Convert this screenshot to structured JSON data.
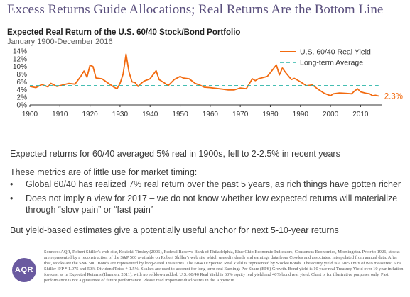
{
  "slide": {
    "title": "Excess Returns Guide Allocations; Real Returns Are the Bottom Line"
  },
  "chart": {
    "title": "Expected Real Return of the U.S. 60/40 Stock/Bond Portfolio",
    "subtitle": "January 1900-December 2016",
    "end_label": "2.3%",
    "colors": {
      "series": "#f26a0f",
      "average": "#2bb5a8",
      "axis": "#333333"
    }
  },
  "chart_data": {
    "type": "line",
    "title": "Expected Real Return of the U.S. 60/40 Stock/Bond Portfolio",
    "subtitle": "January 1900-December 2016",
    "xlabel": "",
    "ylabel": "",
    "xlim": [
      1900,
      2017
    ],
    "ylim": [
      0,
      14
    ],
    "x_ticks": [
      1900,
      1910,
      1920,
      1930,
      1940,
      1950,
      1960,
      1970,
      1980,
      1990,
      2000,
      2010
    ],
    "y_ticks": [
      "0%",
      "2%",
      "4%",
      "6%",
      "8%",
      "10%",
      "12%",
      "14%"
    ],
    "legend": {
      "position": "top-right"
    },
    "series": [
      {
        "name": "U.S. 60/40 Real Yield",
        "style": "solid",
        "points": [
          [
            1900,
            4.8
          ],
          [
            1902,
            4.5
          ],
          [
            1904,
            5.3
          ],
          [
            1906,
            4.7
          ],
          [
            1907,
            5.6
          ],
          [
            1909,
            4.8
          ],
          [
            1911,
            5.2
          ],
          [
            1913,
            5.6
          ],
          [
            1915,
            5.4
          ],
          [
            1917,
            7.5
          ],
          [
            1918,
            8.8
          ],
          [
            1919,
            7.2
          ],
          [
            1920,
            10.3
          ],
          [
            1921,
            10.0
          ],
          [
            1922,
            7.0
          ],
          [
            1924,
            6.8
          ],
          [
            1926,
            5.7
          ],
          [
            1928,
            4.6
          ],
          [
            1929,
            4.2
          ],
          [
            1930,
            5.6
          ],
          [
            1931,
            8.0
          ],
          [
            1932,
            13.2
          ],
          [
            1933,
            8.5
          ],
          [
            1934,
            6.0
          ],
          [
            1935,
            5.8
          ],
          [
            1936,
            4.8
          ],
          [
            1937,
            5.6
          ],
          [
            1938,
            6.2
          ],
          [
            1940,
            6.8
          ],
          [
            1942,
            8.9
          ],
          [
            1943,
            6.6
          ],
          [
            1945,
            5.6
          ],
          [
            1946,
            5.0
          ],
          [
            1948,
            6.6
          ],
          [
            1950,
            7.4
          ],
          [
            1951,
            7.0
          ],
          [
            1953,
            6.8
          ],
          [
            1955,
            5.6
          ],
          [
            1957,
            5.0
          ],
          [
            1958,
            4.6
          ],
          [
            1960,
            4.5
          ],
          [
            1962,
            4.3
          ],
          [
            1964,
            4.1
          ],
          [
            1966,
            3.9
          ],
          [
            1968,
            3.9
          ],
          [
            1970,
            4.4
          ],
          [
            1972,
            4.2
          ],
          [
            1974,
            6.8
          ],
          [
            1975,
            6.3
          ],
          [
            1976,
            6.8
          ],
          [
            1978,
            7.2
          ],
          [
            1979,
            7.4
          ],
          [
            1980,
            8.4
          ],
          [
            1981,
            9.4
          ],
          [
            1982,
            10.4
          ],
          [
            1983,
            7.8
          ],
          [
            1984,
            9.6
          ],
          [
            1985,
            8.5
          ],
          [
            1987,
            6.6
          ],
          [
            1988,
            6.9
          ],
          [
            1990,
            6.0
          ],
          [
            1992,
            5.0
          ],
          [
            1994,
            5.2
          ],
          [
            1996,
            4.0
          ],
          [
            1998,
            3.0
          ],
          [
            2000,
            2.4
          ],
          [
            2001,
            2.9
          ],
          [
            2003,
            3.1
          ],
          [
            2005,
            3.0
          ],
          [
            2007,
            2.9
          ],
          [
            2008,
            3.6
          ],
          [
            2009,
            4.2
          ],
          [
            2010,
            3.4
          ],
          [
            2012,
            3.0
          ],
          [
            2013,
            2.9
          ],
          [
            2014,
            2.4
          ],
          [
            2015,
            2.5
          ],
          [
            2016,
            2.3
          ]
        ]
      },
      {
        "name": "Long-term Average",
        "style": "dashed",
        "points": [
          [
            1900,
            5.0
          ],
          [
            2016,
            5.0
          ]
        ]
      }
    ],
    "annotations": [
      {
        "x": 2016,
        "y": 2.3,
        "text": "2.3%"
      }
    ]
  },
  "text": {
    "line1": "Expected returns for 60/40 averaged 5% real in 1900s, fell to 2-2.5% in recent years",
    "line2": "These metrics are of little use for market timing:",
    "bullets": [
      "Global 60/40 has realized 7% real return over the past 5 years, as rich things have gotten richer",
      "Does not imply a view for 2017 – we do not know whether low expected returns will materialize through “slow pain” or “fast pain”"
    ],
    "line3": "But yield-based estimates give a potentially useful anchor for next 5-10-year returns"
  },
  "footer": {
    "logo_text": "AQR",
    "footnote": "Sources: AQR, Robert Shiller's web site, Kozicki-Tinsley (2006), Federal Reserve Bank of Philadelphia, Blue Chip Economic Indicators, Consensus Economics, Morningstar. Prior to 1926, stocks are represented by a reconstruction of the S&P 500 available on Robert Shiller's web site which uses dividends and earnings data from Cowles and associates, interpolated from annual data. After that, stocks are the S&P 500. Bonds are represented by long-dated Treasuries. The 60/40 Expected Real Yield is represented by Stocks/Bonds. The equity yield is a 50/50 mix of two measures: 50% Shiller E/P * 1.075 and 50% Dividend/Price + 1.5%. Scalars are used to account for long term real Earnings Per Share (EPS) Growth. Bond yield is 10 year real Treasury Yield over 10 year inflation forecast as in Expected Returns (Ilmanen, 2011), with no rolldown added. U.S. 60/40 Real Yield is 60% equity real yield and 40% bond real yield. Chart is for illustrative purposes only. Past performance is not a guarantee of future performance. Please read important disclosures in the Appendix."
  }
}
